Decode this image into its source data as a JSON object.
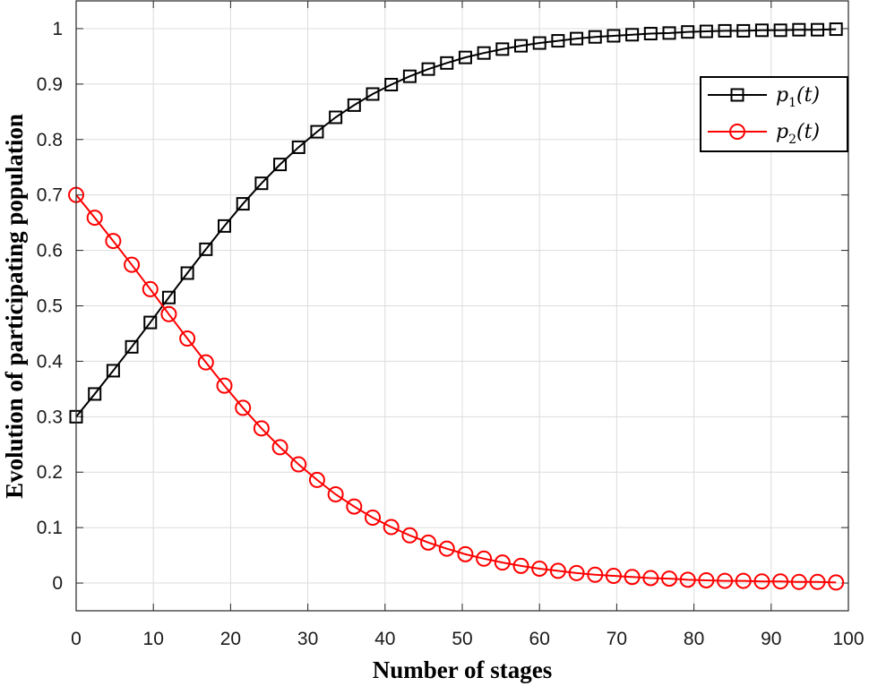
{
  "chart_data": {
    "type": "line",
    "title": "",
    "xlabel": "Number of stages",
    "ylabel": "Evolution of participating population",
    "xlim": [
      0,
      100
    ],
    "ylim": [
      -0.05,
      1.05
    ],
    "xticks": [
      0,
      10,
      20,
      30,
      40,
      50,
      60,
      70,
      80,
      90,
      100
    ],
    "yticks": [
      0,
      0.1,
      0.2,
      0.3,
      0.4,
      0.5,
      0.6,
      0.7,
      0.8,
      0.9,
      1
    ],
    "grid": true,
    "legend_position": "top-right",
    "x": [
      0,
      2.4,
      4.8,
      7.2,
      9.6,
      12.0,
      14.4,
      16.8,
      19.2,
      21.6,
      24.0,
      26.4,
      28.8,
      31.2,
      33.6,
      36.0,
      38.4,
      40.8,
      43.2,
      45.6,
      48.0,
      50.4,
      52.8,
      55.2,
      57.6,
      60.0,
      62.4,
      64.8,
      67.2,
      69.6,
      72.0,
      74.4,
      76.8,
      79.2,
      81.6,
      84.0,
      86.4,
      88.8,
      91.2,
      93.6,
      96.0,
      98.4
    ],
    "series": [
      {
        "name": "p1(t)",
        "base": "p",
        "sub": "1",
        "suffix": "(t)",
        "color": "#000000",
        "marker": "square",
        "values": [
          0.3,
          0.341,
          0.383,
          0.426,
          0.47,
          0.515,
          0.559,
          0.602,
          0.644,
          0.684,
          0.721,
          0.755,
          0.786,
          0.814,
          0.84,
          0.862,
          0.882,
          0.899,
          0.914,
          0.927,
          0.938,
          0.948,
          0.956,
          0.963,
          0.969,
          0.974,
          0.978,
          0.982,
          0.985,
          0.987,
          0.989,
          0.991,
          0.992,
          0.994,
          0.995,
          0.996,
          0.996,
          0.997,
          0.997,
          0.998,
          0.998,
          0.999
        ]
      },
      {
        "name": "p2(t)",
        "base": "p",
        "sub": "2",
        "suffix": "(t)",
        "color": "#ff0000",
        "marker": "circle",
        "values": [
          0.7,
          0.659,
          0.617,
          0.574,
          0.53,
          0.485,
          0.441,
          0.398,
          0.356,
          0.316,
          0.279,
          0.245,
          0.214,
          0.186,
          0.16,
          0.138,
          0.118,
          0.101,
          0.086,
          0.073,
          0.062,
          0.052,
          0.044,
          0.037,
          0.031,
          0.026,
          0.022,
          0.018,
          0.015,
          0.013,
          0.011,
          0.009,
          0.008,
          0.006,
          0.005,
          0.004,
          0.004,
          0.003,
          0.003,
          0.002,
          0.002,
          0.001
        ]
      }
    ]
  }
}
